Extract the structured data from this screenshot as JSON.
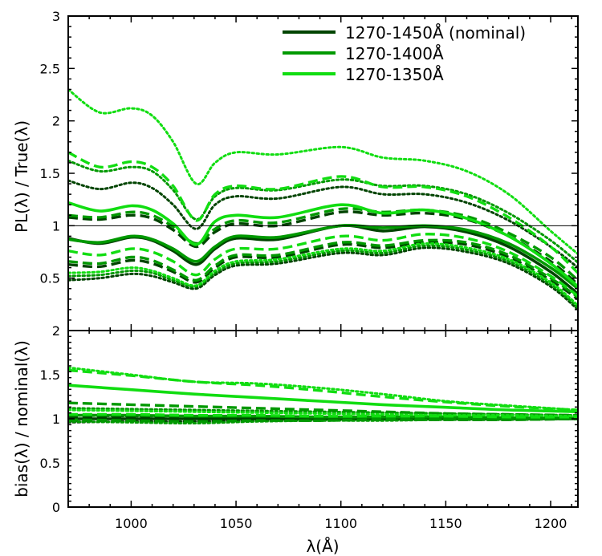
{
  "chart_data": [
    {
      "type": "line",
      "panel": "top",
      "ylabel": "PL(λ) / True(λ)",
      "xlim": [
        970,
        1213
      ],
      "ylim": [
        0,
        3
      ],
      "yticks": [
        {
          "v": 0.5,
          "label": "0.5"
        },
        {
          "v": 1,
          "label": "1"
        },
        {
          "v": 1.5,
          "label": "1.5"
        },
        {
          "v": 2,
          "label": "2"
        },
        {
          "v": 2.5,
          "label": "2.5"
        },
        {
          "v": 3,
          "label": "3"
        }
      ],
      "reference_line": 1,
      "legend": [
        {
          "label": "1270-1450Å (nominal)",
          "color": "#004400"
        },
        {
          "label": "1270-1400Å",
          "color": "#009900"
        },
        {
          "label": "1270-1350Å",
          "color": "#11dd11"
        }
      ],
      "x": [
        970,
        985,
        1000,
        1010,
        1020,
        1031,
        1040,
        1050,
        1070,
        1100,
        1120,
        1140,
        1160,
        1180,
        1200,
        1213
      ],
      "series": [
        {
          "name": "nominal-solid",
          "color": "#004400",
          "style": "solid",
          "values": [
            0.88,
            0.83,
            0.89,
            0.86,
            0.76,
            0.63,
            0.78,
            0.88,
            0.87,
            1.0,
            0.95,
            0.99,
            0.94,
            0.8,
            0.56,
            0.35
          ]
        },
        {
          "name": "nominal-dash-upper",
          "color": "#004400",
          "style": "dashed",
          "values": [
            1.08,
            1.06,
            1.1,
            1.07,
            0.96,
            0.8,
            0.94,
            1.02,
            1.0,
            1.13,
            1.1,
            1.12,
            1.06,
            0.9,
            0.66,
            0.44
          ]
        },
        {
          "name": "nominal-dash-lower",
          "color": "#004400",
          "style": "dashed",
          "values": [
            0.63,
            0.61,
            0.67,
            0.64,
            0.56,
            0.46,
            0.6,
            0.7,
            0.7,
            0.82,
            0.79,
            0.84,
            0.82,
            0.7,
            0.48,
            0.3
          ]
        },
        {
          "name": "nominal-dot-upper",
          "color": "#004400",
          "style": "dotted",
          "values": [
            1.43,
            1.35,
            1.41,
            1.36,
            1.2,
            0.97,
            1.2,
            1.28,
            1.26,
            1.37,
            1.3,
            1.3,
            1.22,
            1.05,
            0.8,
            0.6
          ]
        },
        {
          "name": "nominal-dot-lower",
          "color": "#004400",
          "style": "dotted",
          "values": [
            0.48,
            0.5,
            0.54,
            0.52,
            0.46,
            0.4,
            0.53,
            0.62,
            0.64,
            0.74,
            0.72,
            0.79,
            0.75,
            0.64,
            0.42,
            0.2
          ]
        },
        {
          "name": "1400-solid",
          "color": "#009900",
          "style": "solid",
          "values": [
            0.87,
            0.84,
            0.9,
            0.87,
            0.78,
            0.66,
            0.8,
            0.9,
            0.89,
            1.0,
            0.98,
            1.0,
            0.96,
            0.83,
            0.6,
            0.4
          ]
        },
        {
          "name": "1400-dash-upper",
          "color": "#009900",
          "style": "dashed",
          "values": [
            1.1,
            1.08,
            1.13,
            1.1,
            0.99,
            0.83,
            0.97,
            1.05,
            1.03,
            1.16,
            1.13,
            1.15,
            1.09,
            0.93,
            0.7,
            0.48
          ]
        },
        {
          "name": "1400-dash-lower",
          "color": "#009900",
          "style": "dashed",
          "values": [
            0.66,
            0.64,
            0.7,
            0.67,
            0.58,
            0.48,
            0.62,
            0.72,
            0.72,
            0.84,
            0.81,
            0.86,
            0.84,
            0.72,
            0.5,
            0.32
          ]
        },
        {
          "name": "1400-dot-upper",
          "color": "#009900",
          "style": "dotted",
          "values": [
            1.62,
            1.52,
            1.56,
            1.52,
            1.34,
            1.06,
            1.28,
            1.36,
            1.34,
            1.44,
            1.38,
            1.38,
            1.3,
            1.12,
            0.86,
            0.65
          ]
        },
        {
          "name": "1400-dot-lower",
          "color": "#009900",
          "style": "dotted",
          "values": [
            0.52,
            0.53,
            0.57,
            0.55,
            0.48,
            0.42,
            0.55,
            0.64,
            0.66,
            0.76,
            0.74,
            0.81,
            0.77,
            0.66,
            0.44,
            0.22
          ]
        },
        {
          "name": "1350-solid",
          "color": "#11dd11",
          "style": "solid",
          "values": [
            1.22,
            1.14,
            1.19,
            1.15,
            1.02,
            0.82,
            1.04,
            1.1,
            1.08,
            1.2,
            1.12,
            1.15,
            1.07,
            0.9,
            0.64,
            0.42
          ]
        },
        {
          "name": "1350-dash-upper",
          "color": "#11dd11",
          "style": "dashed",
          "values": [
            1.7,
            1.56,
            1.61,
            1.56,
            1.38,
            1.05,
            1.3,
            1.38,
            1.35,
            1.47,
            1.37,
            1.37,
            1.28,
            1.08,
            0.8,
            0.55
          ]
        },
        {
          "name": "1350-dash-lower",
          "color": "#11dd11",
          "style": "dashed",
          "values": [
            0.76,
            0.72,
            0.78,
            0.75,
            0.66,
            0.53,
            0.68,
            0.78,
            0.78,
            0.9,
            0.86,
            0.92,
            0.88,
            0.75,
            0.52,
            0.33
          ]
        },
        {
          "name": "1350-dot-upper",
          "color": "#11dd11",
          "style": "dotted",
          "values": [
            2.3,
            2.08,
            2.12,
            2.05,
            1.8,
            1.4,
            1.6,
            1.7,
            1.68,
            1.75,
            1.65,
            1.62,
            1.52,
            1.3,
            0.95,
            0.73
          ]
        },
        {
          "name": "1350-dot-lower",
          "color": "#11dd11",
          "style": "dotted",
          "values": [
            0.55,
            0.56,
            0.6,
            0.57,
            0.5,
            0.43,
            0.57,
            0.66,
            0.68,
            0.78,
            0.76,
            0.83,
            0.79,
            0.68,
            0.46,
            0.24
          ]
        }
      ]
    },
    {
      "type": "line",
      "panel": "bottom",
      "xlabel": "λ(Å)",
      "ylabel": "bias(λ) / nominal(λ)",
      "xlim": [
        970,
        1213
      ],
      "ylim": [
        0,
        2
      ],
      "xticks": [
        {
          "v": 1000,
          "label": "1000"
        },
        {
          "v": 1050,
          "label": "1050"
        },
        {
          "v": 1100,
          "label": "1100"
        },
        {
          "v": 1150,
          "label": "1150"
        },
        {
          "v": 1200,
          "label": "1200"
        }
      ],
      "yticks": [
        {
          "v": 0,
          "label": "0"
        },
        {
          "v": 0.5,
          "label": "0.5"
        },
        {
          "v": 1,
          "label": "1"
        },
        {
          "v": 1.5,
          "label": "1.5"
        },
        {
          "v": 2,
          "label": "2"
        }
      ],
      "x": [
        970,
        1000,
        1030,
        1060,
        1090,
        1120,
        1150,
        1180,
        1213
      ],
      "series": [
        {
          "name": "nominal-solid",
          "color": "#004400",
          "style": "solid",
          "values": [
            1.0,
            1.0,
            1.0,
            1.0,
            1.0,
            1.0,
            1.0,
            1.0,
            1.0
          ]
        },
        {
          "name": "nominal-dash-a",
          "color": "#004400",
          "style": "dashed",
          "values": [
            1.02,
            1.02,
            1.02,
            1.01,
            1.01,
            1.01,
            1.01,
            1.01,
            1.0
          ]
        },
        {
          "name": "nominal-dash-b",
          "color": "#004400",
          "style": "dashed",
          "values": [
            0.98,
            0.98,
            0.98,
            0.99,
            0.99,
            0.99,
            0.99,
            0.99,
            1.0
          ]
        },
        {
          "name": "nominal-dot-a",
          "color": "#004400",
          "style": "dotted",
          "values": [
            1.04,
            1.03,
            1.03,
            1.02,
            1.02,
            1.02,
            1.01,
            1.01,
            1.01
          ]
        },
        {
          "name": "nominal-dot-b",
          "color": "#004400",
          "style": "dotted",
          "values": [
            0.96,
            0.97,
            0.97,
            0.98,
            0.98,
            0.99,
            0.99,
            0.99,
            1.0
          ]
        },
        {
          "name": "1400-solid",
          "color": "#009900",
          "style": "solid",
          "values": [
            1.04,
            1.04,
            1.03,
            1.03,
            1.02,
            1.02,
            1.02,
            1.01,
            1.01
          ]
        },
        {
          "name": "1400-dash-a",
          "color": "#009900",
          "style": "dashed",
          "values": [
            1.18,
            1.16,
            1.14,
            1.12,
            1.1,
            1.08,
            1.06,
            1.05,
            1.04
          ]
        },
        {
          "name": "1400-dash-b",
          "color": "#009900",
          "style": "dashed",
          "values": [
            0.99,
            0.98,
            0.97,
            0.98,
            0.98,
            0.99,
            0.99,
            0.99,
            1.0
          ]
        },
        {
          "name": "1400-dot-a",
          "color": "#009900",
          "style": "dotted",
          "values": [
            1.12,
            1.11,
            1.1,
            1.09,
            1.08,
            1.07,
            1.06,
            1.05,
            1.04
          ]
        },
        {
          "name": "1400-dot-b",
          "color": "#009900",
          "style": "dotted",
          "values": [
            0.97,
            0.96,
            0.95,
            0.97,
            0.98,
            0.98,
            0.99,
            0.99,
            1.0
          ]
        },
        {
          "name": "1350-solid",
          "color": "#11dd11",
          "style": "solid",
          "values": [
            1.38,
            1.33,
            1.28,
            1.24,
            1.2,
            1.16,
            1.13,
            1.1,
            1.08
          ]
        },
        {
          "name": "1350-dash-a",
          "color": "#11dd11",
          "style": "dashed",
          "values": [
            1.55,
            1.49,
            1.42,
            1.38,
            1.32,
            1.25,
            1.19,
            1.14,
            1.1
          ]
        },
        {
          "name": "1350-dash-b",
          "color": "#11dd11",
          "style": "dashed",
          "values": [
            1.05,
            1.05,
            1.04,
            1.04,
            1.03,
            1.03,
            1.03,
            1.02,
            1.02
          ]
        },
        {
          "name": "1350-dot-a",
          "color": "#11dd11",
          "style": "dotted",
          "values": [
            1.58,
            1.5,
            1.42,
            1.4,
            1.35,
            1.28,
            1.2,
            1.15,
            1.1
          ]
        },
        {
          "name": "1350-dot-b",
          "color": "#11dd11",
          "style": "dotted",
          "values": [
            1.1,
            1.09,
            1.08,
            1.07,
            1.06,
            1.05,
            1.04,
            1.04,
            1.03
          ]
        }
      ]
    }
  ]
}
